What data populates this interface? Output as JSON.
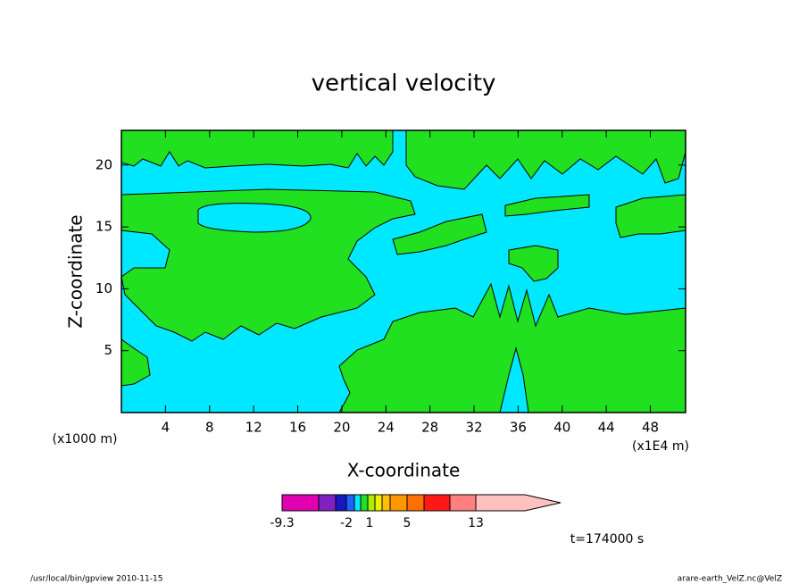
{
  "chart_data": {
    "type": "contour",
    "title": "vertical velocity",
    "xlabel": "X-coordinate",
    "ylabel": "Z-coordinate",
    "x_unit_left": "(x1000 m)",
    "x_unit_right": "(x1E4 m)",
    "xlim": [
      0,
      51.2
    ],
    "xticks": [
      4,
      8,
      12,
      16,
      20,
      24,
      28,
      32,
      36,
      40,
      44,
      48
    ],
    "ylim": [
      0,
      22.8
    ],
    "yticks": [
      5,
      10,
      15,
      20
    ],
    "colorbar": {
      "colors": [
        "#e000b0",
        "#8020c0",
        "#1818c0",
        "#2060ff",
        "#00e8ff",
        "#20e020",
        "#a8f000",
        "#f0f000",
        "#ffc000",
        "#ff9800",
        "#ff7000",
        "#ff1818",
        "#ff8080",
        "#ffc0c0"
      ],
      "ticks": [
        -9.3,
        -2,
        1,
        5,
        13
      ]
    },
    "time_label": "t=174000 s",
    "footer_left": "/usr/local/bin/gpview  2010-11-15",
    "footer_right": "arare-earth_VelZ.nc@VelZ"
  }
}
